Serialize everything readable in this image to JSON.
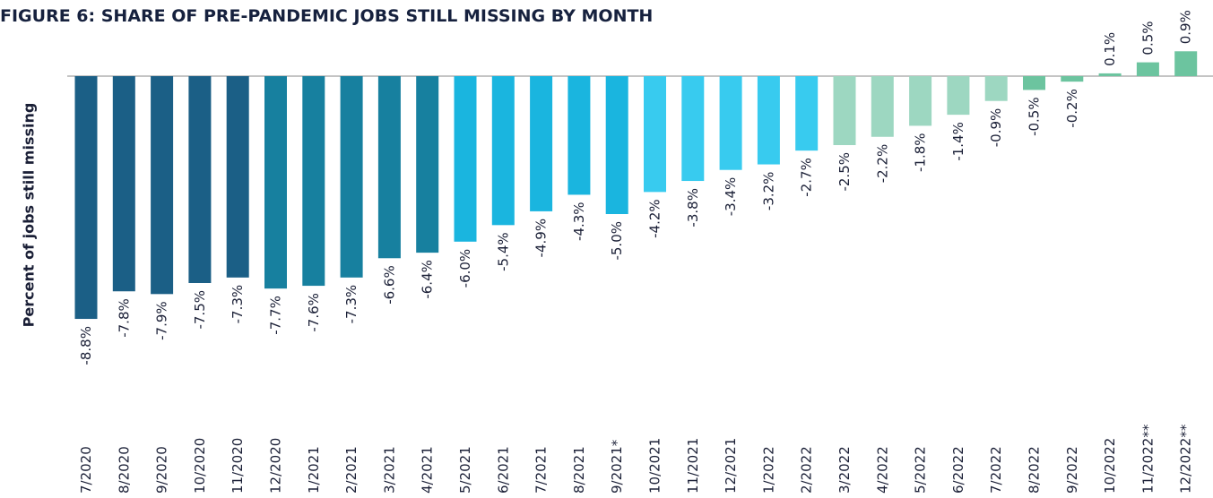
{
  "chart_data": {
    "type": "bar",
    "title": "FIGURE 6: SHARE OF PRE-PANDEMIC JOBS STILL MISSING BY MONTH",
    "y_label": "Percent of jobs still missing",
    "categories": [
      "7/2020",
      "8/2020",
      "9/2020",
      "10/2020",
      "11/2020",
      "12/2020",
      "1/2021",
      "2/2021",
      "3/2021",
      "4/2021",
      "5/2021",
      "6/2021",
      "7/2021",
      "8/2021",
      "9/2021*",
      "10/2021",
      "11/2021",
      "12/2021",
      "1/2022",
      "2/2022",
      "3/2022",
      "4/2022",
      "5/2022",
      "6/2022",
      "7/2022",
      "8/2022",
      "9/2022",
      "10/2022",
      "11/2022**",
      "12/2022**"
    ],
    "values": [
      -8.8,
      -7.8,
      -7.9,
      -7.5,
      -7.3,
      -7.7,
      -7.6,
      -7.3,
      -6.6,
      -6.4,
      -6.0,
      -5.4,
      -4.9,
      -4.3,
      -5.0,
      -4.2,
      -3.8,
      -3.4,
      -3.2,
      -2.7,
      -2.5,
      -2.2,
      -1.8,
      -1.4,
      -0.9,
      -0.5,
      -0.2,
      0.1,
      0.5,
      0.9
    ],
    "value_labels": [
      "-8.8%",
      "-7.8%",
      "-7.9%",
      "-7.5%",
      "-7.3%",
      "-7.7%",
      "-7.6%",
      "-7.3%",
      "-6.6%",
      "-6.4%",
      "-6.0%",
      "-5.4%",
      "-4.9%",
      "-4.3%",
      "-5.0%",
      "-4.2%",
      "-3.8%",
      "-3.4%",
      "-3.2%",
      "-2.7%",
      "-2.5%",
      "-2.2%",
      "-1.8%",
      "-1.4%",
      "-0.9%",
      "-0.5%",
      "-0.2%",
      "0.1%",
      "0.5%",
      "0.9%"
    ],
    "colors": [
      "#1b5f86",
      "#1b5f86",
      "#1b5f86",
      "#1b5f86",
      "#1b5f86",
      "#17809f",
      "#17809f",
      "#17809f",
      "#17809f",
      "#17809f",
      "#1ab5df",
      "#1ab5df",
      "#1ab5df",
      "#1ab5df",
      "#1ab5df",
      "#38cbef",
      "#38cbef",
      "#38cbef",
      "#38cbef",
      "#38cbef",
      "#9dd7c1",
      "#9dd7c1",
      "#9dd7c1",
      "#9dd7c1",
      "#9dd7c1",
      "#6cc49f",
      "#6cc49f",
      "#6cc49f",
      "#6cc49f",
      "#6cc49f"
    ]
  }
}
